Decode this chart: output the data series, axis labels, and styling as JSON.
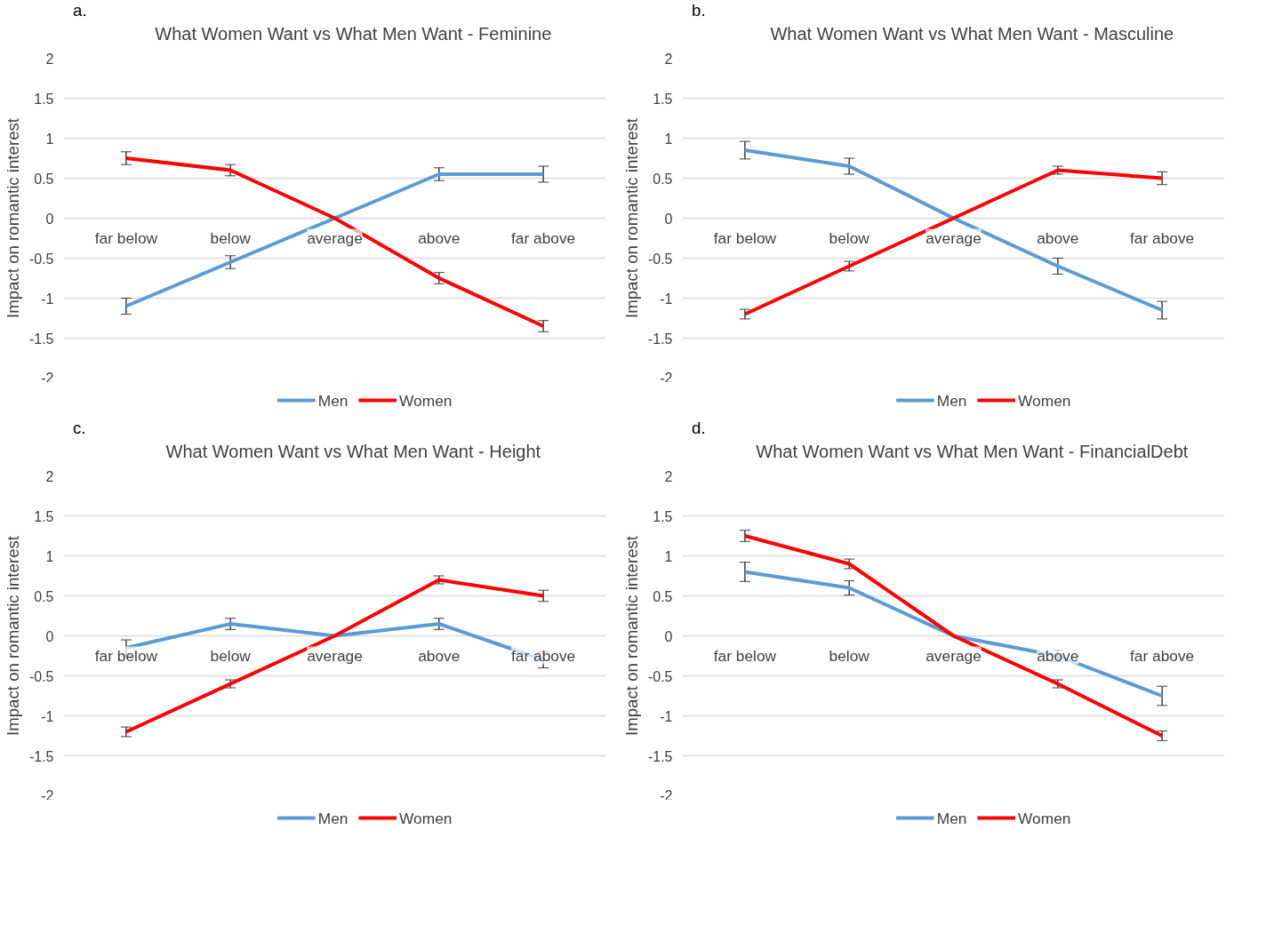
{
  "chart_data": [
    {
      "type": "line",
      "title": "What Women Want vs What Men Want  - Feminine",
      "ylabel": "Impact on romantic interest",
      "annotations": [
        "a."
      ],
      "categories": [
        "far below",
        "below",
        "average",
        "above",
        "far above"
      ],
      "ylim": [
        -2,
        2
      ],
      "yticks": [
        2,
        1.5,
        1,
        0.5,
        0,
        -0.5,
        -1,
        -1.5,
        -2
      ],
      "grid": "y",
      "legend": "bottom",
      "marker": "none",
      "line_style": "solid",
      "series": [
        {
          "name": "Men",
          "color": "#5b9bd5",
          "values": [
            -1.1,
            -0.55,
            0,
            0.55,
            0.55
          ],
          "errors": [
            0.1,
            0.08,
            null,
            0.08,
            0.1
          ]
        },
        {
          "name": "Women",
          "color": "#ff0000",
          "values": [
            0.75,
            0.6,
            0,
            -0.75,
            -1.35
          ],
          "errors": [
            0.08,
            0.07,
            null,
            0.07,
            0.07
          ]
        }
      ]
    },
    {
      "type": "line",
      "title": "What Women Want vs What Men Want  - Masculine",
      "ylabel": "Impact on romantic interest",
      "annotations": [
        "b."
      ],
      "categories": [
        "far below",
        "below",
        "average",
        "above",
        "far above"
      ],
      "ylim": [
        -2,
        2
      ],
      "yticks": [
        2,
        1.5,
        1,
        0.5,
        0,
        -0.5,
        -1,
        -1.5,
        -2
      ],
      "grid": "y",
      "legend": "bottom",
      "marker": "none",
      "line_style": "solid",
      "series": [
        {
          "name": "Men",
          "color": "#5b9bd5",
          "values": [
            0.85,
            0.65,
            0,
            -0.6,
            -1.15
          ],
          "errors": [
            0.11,
            0.1,
            null,
            0.1,
            0.11
          ]
        },
        {
          "name": "Women",
          "color": "#ff0000",
          "values": [
            -1.2,
            -0.6,
            0,
            0.6,
            0.5
          ],
          "errors": [
            0.06,
            0.06,
            null,
            0.05,
            0.08
          ]
        }
      ]
    },
    {
      "type": "line",
      "title": "What Women Want vs What Men Want  - Height",
      "ylabel": "Impact on romantic interest",
      "annotations": [
        "c."
      ],
      "categories": [
        "far below",
        "below",
        "average",
        "above",
        "far above"
      ],
      "ylim": [
        -2,
        2
      ],
      "yticks": [
        2,
        1.5,
        1,
        0.5,
        0,
        -0.5,
        -1,
        -1.5,
        -2
      ],
      "grid": "y",
      "legend": "bottom",
      "marker": "none",
      "line_style": "solid",
      "series": [
        {
          "name": "Men",
          "color": "#5b9bd5",
          "values": [
            -0.15,
            0.15,
            0,
            0.15,
            -0.3
          ],
          "errors": [
            0.1,
            0.07,
            null,
            0.07,
            0.1
          ]
        },
        {
          "name": "Women",
          "color": "#ff0000",
          "values": [
            -1.2,
            -0.6,
            0,
            0.7,
            0.5
          ],
          "errors": [
            0.06,
            0.05,
            null,
            0.05,
            0.07
          ]
        }
      ]
    },
    {
      "type": "line",
      "title": "What Women Want vs What Men Want  - FinancialDebt",
      "ylabel": "Impact on romantic interest",
      "annotations": [
        "d."
      ],
      "categories": [
        "far below",
        "below",
        "average",
        "above",
        "far above"
      ],
      "ylim": [
        -2,
        2
      ],
      "yticks": [
        2,
        1.5,
        1,
        0.5,
        0,
        -0.5,
        -1,
        -1.5,
        -2
      ],
      "grid": "y",
      "legend": "bottom",
      "marker": "none",
      "line_style": "solid",
      "series": [
        {
          "name": "Men",
          "color": "#5b9bd5",
          "values": [
            0.8,
            0.6,
            0,
            -0.25,
            -0.75
          ],
          "errors": [
            0.12,
            0.09,
            null,
            0.07,
            0.12
          ]
        },
        {
          "name": "Women",
          "color": "#ff0000",
          "values": [
            1.25,
            0.9,
            0,
            -0.6,
            -1.25
          ],
          "errors": [
            0.07,
            0.06,
            null,
            0.05,
            0.06
          ]
        }
      ]
    }
  ]
}
